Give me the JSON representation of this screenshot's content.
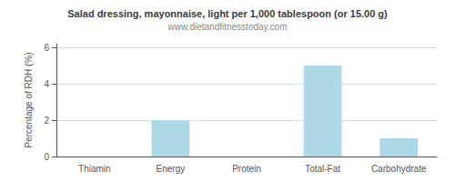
{
  "chart_data": {
    "type": "bar",
    "title": "Salad dressing, mayonnaise, light per 1,000 tablespoon (or 15.00 g)",
    "subtitle": "www.dietandfitnesstoday.com",
    "categories": [
      "Thiamin",
      "Energy",
      "Protein",
      "Total-Fat",
      "Carbohydrate"
    ],
    "values": [
      0,
      2,
      0,
      5,
      1
    ],
    "color": "#add8e6",
    "ylabel": "Percentage of RDH (%)",
    "ylim": [
      0,
      6.2
    ],
    "yticks": [
      0,
      2,
      4,
      6
    ],
    "grid": true
  }
}
